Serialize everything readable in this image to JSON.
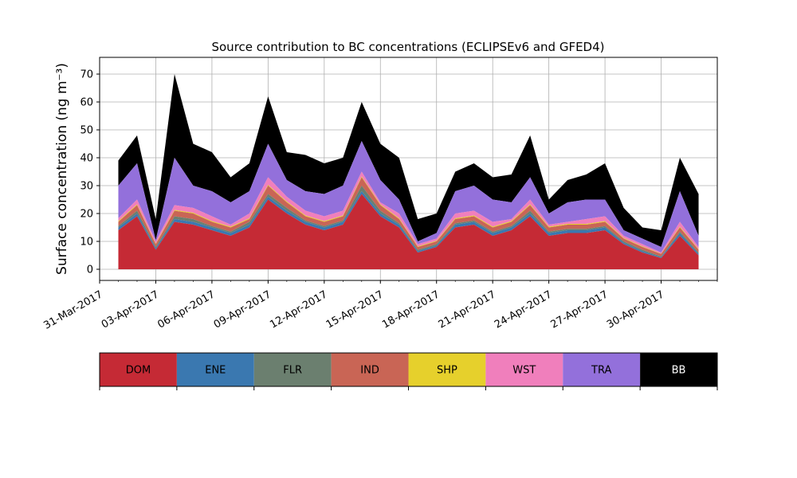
{
  "chart_data": {
    "type": "area",
    "stacked": true,
    "title": "Source contribution to BC concentrations (ECLIPSEv6 and GFED4)",
    "ylabel": "Surface concentration (ng m⁻³)",
    "xlabel": "",
    "ylim": [
      -4,
      76
    ],
    "yticks": [
      0,
      10,
      20,
      30,
      40,
      50,
      60,
      70
    ],
    "grid": true,
    "x_axis": {
      "start": "2017-03-31",
      "end": "2017-05-03",
      "tick_labels": [
        "31-Mar-2017",
        "03-Apr-2017",
        "06-Apr-2017",
        "09-Apr-2017",
        "12-Apr-2017",
        "15-Apr-2017",
        "18-Apr-2017",
        "21-Apr-2017",
        "24-Apr-2017",
        "27-Apr-2017",
        "30-Apr-2017"
      ]
    },
    "series_order": [
      "DOM",
      "ENE",
      "FLR",
      "IND",
      "SHP",
      "WST",
      "TRA",
      "BB"
    ],
    "colors": {
      "DOM": "#c52a35",
      "ENE": "#3a78b0",
      "FLR": "#6b7f6f",
      "IND": "#c96555",
      "SHP": "#e6d02c",
      "WST": "#f07fbc",
      "TRA": "#9370db",
      "BB": "#000000"
    },
    "legend": {
      "placement": "bottom",
      "items": [
        "DOM",
        "ENE",
        "FLR",
        "IND",
        "SHP",
        "WST",
        "TRA",
        "BB"
      ]
    },
    "cumulative_daily": [
      {
        "date": "2017-04-01",
        "DOM": 14,
        "ENE": 15,
        "FLR": 15.5,
        "IND": 17,
        "SHP": 17.3,
        "WST": 18.3,
        "TRA": 30,
        "BB": 39
      },
      {
        "date": "2017-04-02",
        "DOM": 19,
        "ENE": 20,
        "FLR": 21,
        "IND": 23,
        "SHP": 23.3,
        "WST": 25,
        "TRA": 38,
        "BB": 48
      },
      {
        "date": "2017-04-03",
        "DOM": 7,
        "ENE": 7.5,
        "FLR": 8,
        "IND": 9,
        "SHP": 9.2,
        "WST": 10,
        "TRA": 10.5,
        "BB": 18
      },
      {
        "date": "2017-04-04",
        "DOM": 17,
        "ENE": 18,
        "FLR": 19,
        "IND": 21,
        "SHP": 21.3,
        "WST": 23,
        "TRA": 40,
        "BB": 70
      },
      {
        "date": "2017-04-05",
        "DOM": 16,
        "ENE": 17,
        "FLR": 18,
        "IND": 20,
        "SHP": 20.3,
        "WST": 22,
        "TRA": 30,
        "BB": 45
      },
      {
        "date": "2017-04-06",
        "DOM": 14,
        "ENE": 15,
        "FLR": 15.5,
        "IND": 17,
        "SHP": 17.3,
        "WST": 19,
        "TRA": 28,
        "BB": 42
      },
      {
        "date": "2017-04-07",
        "DOM": 12,
        "ENE": 13,
        "FLR": 13.5,
        "IND": 15,
        "SHP": 15.3,
        "WST": 16,
        "TRA": 24,
        "BB": 33
      },
      {
        "date": "2017-04-08",
        "DOM": 15,
        "ENE": 16,
        "FLR": 17,
        "IND": 18,
        "SHP": 18.3,
        "WST": 20,
        "TRA": 28,
        "BB": 38
      },
      {
        "date": "2017-04-09",
        "DOM": 25,
        "ENE": 26,
        "FLR": 27,
        "IND": 30,
        "SHP": 30.3,
        "WST": 33,
        "TRA": 45,
        "BB": 62
      },
      {
        "date": "2017-04-10",
        "DOM": 20,
        "ENE": 21,
        "FLR": 22,
        "IND": 24,
        "SHP": 24.3,
        "WST": 26,
        "TRA": 32,
        "BB": 42
      },
      {
        "date": "2017-04-11",
        "DOM": 16,
        "ENE": 17,
        "FLR": 17.5,
        "IND": 19,
        "SHP": 19.3,
        "WST": 21,
        "TRA": 28,
        "BB": 41
      },
      {
        "date": "2017-04-12",
        "DOM": 14,
        "ENE": 15,
        "FLR": 15.5,
        "IND": 17,
        "SHP": 17.3,
        "WST": 19,
        "TRA": 27,
        "BB": 38
      },
      {
        "date": "2017-04-13",
        "DOM": 16,
        "ENE": 17,
        "FLR": 17.5,
        "IND": 19,
        "SHP": 19.3,
        "WST": 21,
        "TRA": 30,
        "BB": 40
      },
      {
        "date": "2017-04-14",
        "DOM": 27,
        "ENE": 28,
        "FLR": 30,
        "IND": 33,
        "SHP": 33.3,
        "WST": 35,
        "TRA": 46,
        "BB": 60
      },
      {
        "date": "2017-04-15",
        "DOM": 19,
        "ENE": 20,
        "FLR": 21,
        "IND": 23,
        "SHP": 23.3,
        "WST": 24,
        "TRA": 32,
        "BB": 45
      },
      {
        "date": "2017-04-16",
        "DOM": 15,
        "ENE": 16,
        "FLR": 16.5,
        "IND": 18,
        "SHP": 18.3,
        "WST": 20,
        "TRA": 25,
        "BB": 40
      },
      {
        "date": "2017-04-17",
        "DOM": 6,
        "ENE": 6.5,
        "FLR": 7,
        "IND": 8,
        "SHP": 8.2,
        "WST": 9,
        "TRA": 10,
        "BB": 18
      },
      {
        "date": "2017-04-18",
        "DOM": 8,
        "ENE": 8.5,
        "FLR": 9,
        "IND": 10,
        "SHP": 10.2,
        "WST": 11,
        "TRA": 13,
        "BB": 20
      },
      {
        "date": "2017-04-19",
        "DOM": 15,
        "ENE": 16,
        "FLR": 16.5,
        "IND": 18,
        "SHP": 18.3,
        "WST": 20,
        "TRA": 28,
        "BB": 35
      },
      {
        "date": "2017-04-20",
        "DOM": 16,
        "ENE": 17,
        "FLR": 17.5,
        "IND": 19,
        "SHP": 19.3,
        "WST": 21,
        "TRA": 30,
        "BB": 38
      },
      {
        "date": "2017-04-21",
        "DOM": 12,
        "ENE": 13,
        "FLR": 13.5,
        "IND": 15,
        "SHP": 15.3,
        "WST": 17,
        "TRA": 25,
        "BB": 33
      },
      {
        "date": "2017-04-22",
        "DOM": 14,
        "ENE": 15,
        "FLR": 15.5,
        "IND": 17,
        "SHP": 17.3,
        "WST": 18,
        "TRA": 24,
        "BB": 34
      },
      {
        "date": "2017-04-23",
        "DOM": 19,
        "ENE": 20,
        "FLR": 21,
        "IND": 23,
        "SHP": 23.3,
        "WST": 25,
        "TRA": 33,
        "BB": 48
      },
      {
        "date": "2017-04-24",
        "DOM": 12,
        "ENE": 13,
        "FLR": 13.5,
        "IND": 15,
        "SHP": 15.3,
        "WST": 16,
        "TRA": 20,
        "BB": 25
      },
      {
        "date": "2017-04-25",
        "DOM": 13,
        "ENE": 14,
        "FLR": 14.5,
        "IND": 16,
        "SHP": 16.3,
        "WST": 17,
        "TRA": 24,
        "BB": 32
      },
      {
        "date": "2017-04-26",
        "DOM": 13,
        "ENE": 14,
        "FLR": 14.5,
        "IND": 16,
        "SHP": 16.3,
        "WST": 18,
        "TRA": 25,
        "BB": 34
      },
      {
        "date": "2017-04-27",
        "DOM": 14,
        "ENE": 15,
        "FLR": 15.5,
        "IND": 17,
        "SHP": 17.3,
        "WST": 19,
        "TRA": 25,
        "BB": 38
      },
      {
        "date": "2017-04-28",
        "DOM": 9,
        "ENE": 9.5,
        "FLR": 10,
        "IND": 11,
        "SHP": 11.2,
        "WST": 12,
        "TRA": 14,
        "BB": 22
      },
      {
        "date": "2017-04-29",
        "DOM": 6,
        "ENE": 6.5,
        "FLR": 7,
        "IND": 8,
        "SHP": 8.2,
        "WST": 9,
        "TRA": 11,
        "BB": 15
      },
      {
        "date": "2017-04-30",
        "DOM": 4,
        "ENE": 4.3,
        "FLR": 4.6,
        "IND": 5.5,
        "SHP": 5.6,
        "WST": 6,
        "TRA": 8,
        "BB": 14
      },
      {
        "date": "2017-05-01",
        "DOM": 12,
        "ENE": 13,
        "FLR": 13.5,
        "IND": 15,
        "SHP": 15.3,
        "WST": 17,
        "TRA": 28,
        "BB": 40
      },
      {
        "date": "2017-05-02",
        "DOM": 5,
        "ENE": 5.5,
        "FLR": 6,
        "IND": 7,
        "SHP": 7.2,
        "WST": 8,
        "TRA": 12,
        "BB": 27
      }
    ]
  }
}
